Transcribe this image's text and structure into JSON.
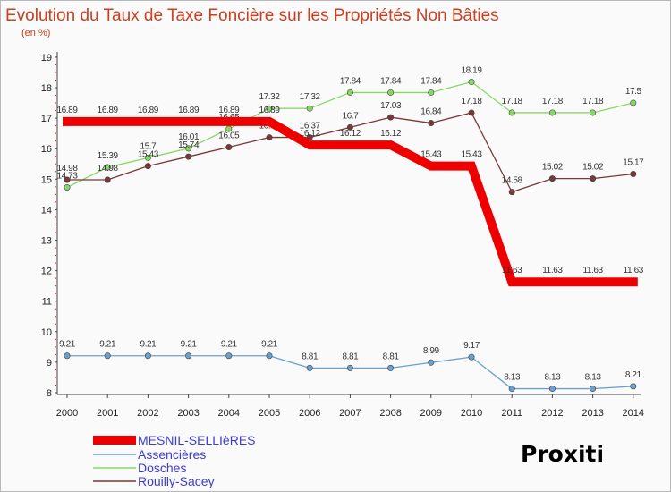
{
  "chart_data": {
    "type": "line",
    "title": "Evolution du Taux de Taxe Foncière sur les Propriétés Non Bâties",
    "subtitle": "(en %)",
    "categories": [
      "2000",
      "2001",
      "2002",
      "2003",
      "2004",
      "2005",
      "2006",
      "2007",
      "2008",
      "2009",
      "2010",
      "2011",
      "2012",
      "2013",
      "2014"
    ],
    "ylim": [
      8,
      19
    ],
    "yticks": [
      "8",
      "9",
      "10",
      "11",
      "12",
      "13",
      "14",
      "15",
      "16",
      "17",
      "18",
      "19"
    ],
    "grid": false,
    "legend_position": "bottom-left",
    "series": [
      {
        "name": "MESNIL-SELLIèRES",
        "color": "#ee0000",
        "values": [
          16.89,
          16.89,
          16.89,
          16.89,
          16.89,
          16.89,
          16.12,
          16.12,
          16.12,
          15.43,
          15.43,
          11.63,
          11.63,
          11.63,
          11.63
        ],
        "labels": [
          "16.89",
          "16.89",
          "16.89",
          "16.89",
          "16.89",
          "16.89",
          "16.12",
          "16.12",
          "16.12",
          "15.43",
          "15.43",
          "11.63",
          "11.63",
          "11.63",
          "11.63"
        ]
      },
      {
        "name": "Assencières",
        "color": "#6aa0d0",
        "values": [
          9.21,
          9.21,
          9.21,
          9.21,
          9.21,
          9.21,
          8.81,
          8.81,
          8.81,
          8.99,
          9.17,
          8.13,
          8.13,
          8.13,
          8.21
        ],
        "labels": [
          "9.21",
          "9.21",
          "9.21",
          "9.21",
          "9.21",
          "9.21",
          "8.81",
          "8.81",
          "8.81",
          "8.99",
          "9.17",
          "8.13",
          "8.13",
          "8.13",
          "8.21"
        ]
      },
      {
        "name": "Dosches",
        "color": "#88d868",
        "values": [
          14.73,
          15.39,
          15.7,
          16.01,
          16.65,
          17.32,
          17.32,
          17.84,
          17.84,
          17.84,
          18.19,
          17.18,
          17.18,
          17.18,
          17.5
        ],
        "labels": [
          "14.73",
          "15.39",
          "15.7",
          "16.01",
          "16.65",
          "17.32",
          "17.32",
          "17.84",
          "17.84",
          "17.84",
          "18.19",
          "17.18",
          "17.18",
          "17.18",
          "17.5"
        ]
      },
      {
        "name": "Rouilly-Sacey",
        "color": "#7a3838",
        "values": [
          14.98,
          14.98,
          15.43,
          15.74,
          16.05,
          16.37,
          16.37,
          16.7,
          17.03,
          16.84,
          17.18,
          14.58,
          15.02,
          15.02,
          15.17
        ],
        "labels": [
          "14.98",
          "14.98",
          "15.43",
          "15.74",
          "16.05",
          "16.37",
          "16.37",
          "16.7",
          "17.03",
          "16.84",
          "17.18",
          "14.58",
          "15.02",
          "15.02",
          "15.17"
        ]
      }
    ]
  },
  "logo": {
    "text": "Proxiti",
    "letters": [
      "P",
      "r",
      "o",
      "x",
      "i",
      "t",
      "i"
    ],
    "colors": [
      "#2a8cd0",
      "#f0a020",
      "#2a8cd0",
      "#e03a2a",
      "#f0a020",
      "#8ac03a",
      "#2a8cd0"
    ]
  }
}
